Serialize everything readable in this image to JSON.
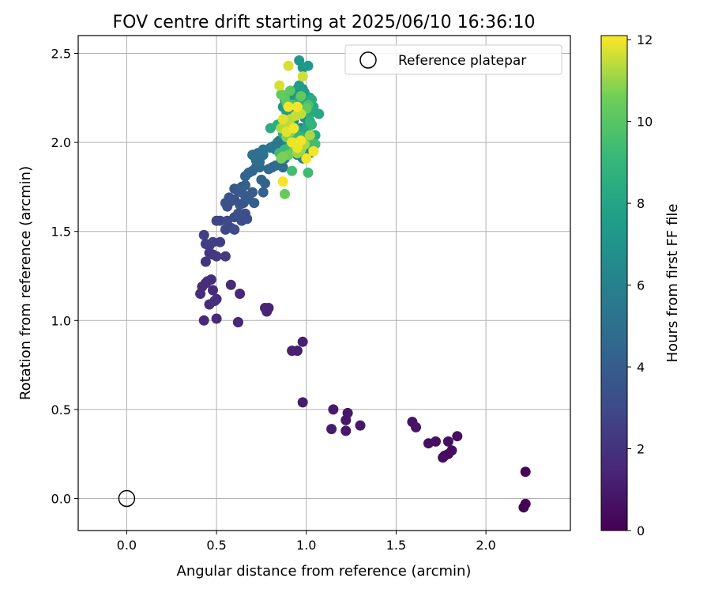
{
  "chart_data": {
    "type": "scatter",
    "title": "FOV centre drift starting at 2025/06/10 16:36:10",
    "xlabel": "Angular distance from reference (arcmin)",
    "ylabel": "Rotation from reference (arcmin)",
    "xlim": [
      -0.27,
      2.47
    ],
    "ylim": [
      -0.18,
      2.6
    ],
    "xticks": [
      "0.0",
      "0.5",
      "1.0",
      "1.5",
      "2.0"
    ],
    "yticks": [
      "0.0",
      "0.5",
      "1.0",
      "1.5",
      "2.0",
      "2.5"
    ],
    "grid": true,
    "legend": {
      "placement": "top-right",
      "entries": [
        "Reference platepar"
      ]
    },
    "reference_point": {
      "x": 0.0,
      "y": 0.0
    },
    "colorbar": {
      "label": "Hours from first FF file",
      "colormap": "viridis",
      "range": [
        0,
        12.1
      ],
      "ticks": [
        "0",
        "2",
        "4",
        "6",
        "8",
        "10",
        "12"
      ]
    },
    "series": [
      {
        "values": [
          [
            2.22,
            0.15,
            0.1
          ],
          [
            2.21,
            -0.05,
            0.1
          ],
          [
            2.22,
            -0.03,
            0.1
          ],
          [
            1.84,
            0.35,
            0.5
          ],
          [
            1.81,
            0.27,
            0.5
          ],
          [
            1.79,
            0.25,
            0.5
          ],
          [
            1.77,
            0.24,
            0.5
          ],
          [
            1.76,
            0.23,
            0.5
          ],
          [
            1.79,
            0.32,
            0.6
          ],
          [
            1.72,
            0.32,
            0.6
          ],
          [
            1.68,
            0.31,
            0.6
          ],
          [
            1.61,
            0.4,
            0.7
          ],
          [
            1.59,
            0.43,
            0.7
          ],
          [
            1.3,
            0.41,
            0.9
          ],
          [
            1.23,
            0.48,
            0.9
          ],
          [
            1.22,
            0.44,
            0.9
          ],
          [
            1.22,
            0.38,
            0.9
          ],
          [
            1.15,
            0.5,
            1.0
          ],
          [
            1.14,
            0.39,
            1.0
          ],
          [
            0.98,
            0.54,
            1.1
          ],
          [
            0.98,
            0.88,
            1.2
          ],
          [
            0.95,
            0.83,
            1.2
          ],
          [
            0.92,
            0.83,
            1.2
          ],
          [
            0.79,
            1.07,
            1.4
          ],
          [
            0.78,
            1.05,
            1.4
          ],
          [
            0.77,
            1.07,
            1.4
          ],
          [
            0.63,
            1.15,
            1.5
          ],
          [
            0.62,
            0.99,
            1.5
          ],
          [
            0.62,
            0.99,
            1.5
          ],
          [
            0.58,
            1.2,
            1.6
          ],
          [
            0.5,
            1.01,
            1.6
          ],
          [
            0.43,
            1.0,
            1.6
          ],
          [
            0.5,
            1.12,
            1.7
          ],
          [
            0.48,
            1.17,
            1.7
          ],
          [
            0.46,
            1.09,
            1.7
          ],
          [
            0.47,
            1.23,
            1.8
          ],
          [
            0.44,
            1.21,
            1.8
          ],
          [
            0.42,
            1.19,
            1.8
          ],
          [
            0.41,
            1.15,
            1.8
          ],
          [
            0.45,
            1.22,
            1.8
          ],
          [
            0.49,
            1.11,
            1.9
          ],
          [
            0.44,
            1.33,
            2.1
          ],
          [
            0.46,
            1.38,
            2.2
          ],
          [
            0.48,
            1.37,
            2.2
          ],
          [
            0.5,
            1.36,
            2.3
          ],
          [
            0.55,
            1.36,
            2.3
          ],
          [
            0.44,
            1.43,
            2.4
          ],
          [
            0.46,
            1.42,
            2.4
          ],
          [
            0.48,
            1.44,
            2.5
          ],
          [
            0.52,
            1.44,
            2.5
          ],
          [
            0.43,
            1.48,
            2.6
          ],
          [
            0.5,
            1.56,
            2.7
          ],
          [
            0.52,
            1.56,
            2.8
          ],
          [
            0.55,
            1.51,
            3.0
          ],
          [
            0.58,
            1.52,
            3.0
          ],
          [
            0.6,
            1.51,
            3.1
          ],
          [
            0.56,
            1.56,
            3.1
          ],
          [
            0.6,
            1.58,
            3.2
          ],
          [
            0.64,
            1.56,
            3.2
          ],
          [
            0.67,
            1.57,
            3.3
          ],
          [
            0.66,
            1.6,
            3.3
          ],
          [
            0.62,
            1.6,
            3.3
          ],
          [
            0.56,
            1.64,
            3.4
          ],
          [
            0.58,
            1.67,
            3.4
          ],
          [
            0.55,
            1.66,
            3.4
          ],
          [
            0.57,
            1.69,
            3.5
          ],
          [
            0.6,
            1.68,
            3.5
          ],
          [
            0.63,
            1.65,
            3.6
          ],
          [
            0.65,
            1.66,
            3.6
          ],
          [
            0.67,
            1.68,
            3.7
          ],
          [
            0.6,
            1.74,
            3.7
          ],
          [
            0.62,
            1.73,
            3.8
          ],
          [
            0.64,
            1.72,
            3.8
          ],
          [
            0.66,
            1.7,
            3.9
          ],
          [
            0.68,
            1.7,
            3.9
          ],
          [
            0.7,
            1.72,
            4.0
          ],
          [
            0.71,
            1.66,
            4.0
          ],
          [
            0.64,
            1.75,
            4.0
          ],
          [
            0.66,
            1.76,
            4.1
          ],
          [
            0.76,
            1.72,
            4.2
          ],
          [
            0.75,
            1.79,
            4.3
          ],
          [
            0.77,
            1.77,
            4.3
          ],
          [
            0.66,
            1.81,
            4.4
          ],
          [
            0.68,
            1.83,
            4.4
          ],
          [
            0.7,
            1.84,
            4.5
          ],
          [
            0.72,
            1.86,
            4.5
          ],
          [
            0.74,
            1.86,
            4.6
          ],
          [
            0.79,
            1.85,
            4.6
          ],
          [
            0.81,
            1.86,
            4.7
          ],
          [
            0.83,
            1.87,
            4.7
          ],
          [
            0.87,
            1.86,
            4.8
          ],
          [
            0.72,
            1.9,
            4.8
          ],
          [
            0.74,
            1.89,
            4.9
          ],
          [
            0.76,
            1.93,
            4.9
          ],
          [
            0.7,
            1.93,
            5.0
          ],
          [
            0.73,
            1.94,
            5.0
          ],
          [
            0.76,
            1.96,
            5.1
          ],
          [
            0.8,
            1.97,
            5.2
          ],
          [
            0.83,
            1.96,
            5.2
          ],
          [
            0.84,
            2.0,
            5.3
          ],
          [
            0.87,
            1.98,
            5.3
          ],
          [
            0.86,
            1.94,
            5.4
          ],
          [
            0.88,
            1.91,
            5.5
          ],
          [
            0.82,
            1.98,
            5.5
          ],
          [
            0.85,
            2.01,
            5.6
          ],
          [
            0.9,
            1.93,
            5.7
          ],
          [
            0.92,
            1.96,
            5.7
          ],
          [
            0.94,
            1.99,
            5.8
          ],
          [
            0.96,
            1.97,
            5.8
          ],
          [
            0.88,
            2.02,
            5.9
          ],
          [
            0.9,
            2.06,
            5.9
          ],
          [
            0.93,
            2.05,
            6.0
          ],
          [
            0.97,
            2.08,
            6.0
          ],
          [
            1.0,
            2.03,
            6.1
          ],
          [
            1.03,
            2.02,
            6.1
          ],
          [
            0.95,
            1.93,
            6.2
          ],
          [
            0.98,
            1.91,
            6.2
          ],
          [
            1.02,
            1.94,
            6.3
          ],
          [
            0.91,
            2.15,
            6.3
          ],
          [
            0.93,
            2.12,
            6.4
          ],
          [
            0.96,
            2.16,
            6.4
          ],
          [
            0.99,
            2.14,
            6.5
          ],
          [
            1.01,
            2.1,
            6.5
          ],
          [
            0.93,
            2.2,
            6.6
          ],
          [
            0.97,
            2.22,
            6.7
          ],
          [
            1.0,
            2.2,
            6.7
          ],
          [
            0.88,
            2.24,
            6.8
          ],
          [
            0.9,
            2.27,
            6.8
          ],
          [
            0.93,
            2.26,
            6.9
          ],
          [
            0.95,
            2.3,
            7.0
          ],
          [
            0.98,
            2.3,
            7.0
          ],
          [
            1.01,
            2.25,
            7.1
          ],
          [
            0.96,
            2.46,
            7.2
          ],
          [
            0.98,
            2.42,
            7.2
          ],
          [
            1.01,
            2.43,
            7.3
          ],
          [
            0.87,
            2.2,
            7.3
          ],
          [
            0.89,
            2.17,
            7.4
          ],
          [
            0.96,
            2.32,
            7.5
          ],
          [
            0.99,
            2.28,
            7.5
          ],
          [
            1.02,
            2.25,
            7.6
          ],
          [
            0.87,
            2.09,
            7.7
          ],
          [
            0.89,
            2.12,
            7.8
          ],
          [
            0.92,
            2.1,
            7.8
          ],
          [
            0.95,
            2.07,
            7.9
          ],
          [
            0.98,
            2.05,
            7.9
          ],
          [
            1.0,
            2.08,
            8.0
          ],
          [
            1.03,
            2.04,
            8.0
          ],
          [
            1.05,
            2.04,
            8.1
          ],
          [
            1.07,
            2.16,
            8.1
          ],
          [
            1.04,
            2.2,
            8.2
          ],
          [
            1.02,
            2.16,
            8.3
          ],
          [
            0.99,
            2.19,
            8.3
          ],
          [
            0.96,
            2.24,
            8.4
          ],
          [
            1.03,
            2.24,
            8.4
          ],
          [
            0.8,
            2.08,
            8.5
          ],
          [
            0.84,
            2.1,
            8.6
          ],
          [
            0.87,
            2.05,
            8.6
          ],
          [
            0.91,
            2.02,
            8.7
          ],
          [
            0.94,
            1.99,
            8.8
          ],
          [
            1.02,
            2.12,
            8.8
          ],
          [
            1.03,
            2.1,
            8.9
          ],
          [
            1.0,
            2.02,
            9.0
          ],
          [
            0.97,
            2.03,
            9.0
          ],
          [
            0.94,
            2.05,
            9.1
          ],
          [
            0.91,
            1.98,
            9.2
          ],
          [
            0.88,
            1.96,
            9.2
          ],
          [
            0.85,
            1.94,
            9.3
          ],
          [
            1.01,
            1.83,
            9.3
          ],
          [
            0.92,
            1.84,
            9.4
          ],
          [
            1.03,
            1.98,
            9.5
          ],
          [
            1.05,
            1.99,
            9.5
          ],
          [
            0.98,
            2.18,
            9.6
          ],
          [
            1.01,
            2.21,
            9.7
          ],
          [
            0.95,
            2.16,
            9.8
          ],
          [
            0.92,
            2.21,
            9.9
          ],
          [
            0.89,
            2.22,
            10.0
          ],
          [
            0.88,
            2.25,
            10.1
          ],
          [
            0.91,
            2.29,
            10.1
          ],
          [
            0.97,
            2.26,
            10.2
          ],
          [
            1.0,
            2.19,
            10.3
          ],
          [
            0.86,
            2.27,
            10.3
          ],
          [
            0.88,
            1.71,
            10.4
          ],
          [
            0.9,
            1.93,
            10.5
          ],
          [
            0.93,
            1.95,
            10.5
          ],
          [
            0.96,
            1.97,
            10.6
          ],
          [
            0.86,
            1.91,
            10.7
          ],
          [
            0.87,
            1.92,
            10.7
          ],
          [
            0.89,
            2.03,
            10.8
          ],
          [
            0.91,
            2.06,
            10.9
          ],
          [
            0.93,
            2.0,
            11.0
          ],
          [
            0.95,
            1.94,
            11.1
          ],
          [
            0.97,
            1.96,
            11.1
          ],
          [
            0.99,
            1.99,
            11.2
          ],
          [
            1.02,
            2.04,
            11.2
          ],
          [
            0.86,
            2.08,
            11.3
          ],
          [
            0.88,
            2.1,
            11.4
          ],
          [
            0.91,
            2.13,
            11.4
          ],
          [
            0.94,
            2.15,
            11.5
          ],
          [
            0.97,
            2.16,
            11.5
          ],
          [
            0.98,
            2.37,
            11.6
          ],
          [
            0.9,
            2.43,
            11.7
          ],
          [
            0.85,
            2.32,
            11.7
          ],
          [
            0.87,
            2.13,
            11.8
          ],
          [
            0.89,
            2.06,
            11.8
          ],
          [
            0.92,
            2.0,
            11.9
          ],
          [
            0.95,
            1.97,
            11.9
          ],
          [
            0.97,
            2.01,
            12.0
          ],
          [
            1.0,
            1.91,
            12.0
          ],
          [
            0.95,
            2.2,
            12.0
          ],
          [
            0.87,
            1.78,
            12.0
          ],
          [
            1.04,
            1.95,
            12.0
          ],
          [
            0.9,
            2.2,
            12.0
          ],
          [
            0.93,
            2.08,
            12.0
          ]
        ]
      }
    ]
  }
}
